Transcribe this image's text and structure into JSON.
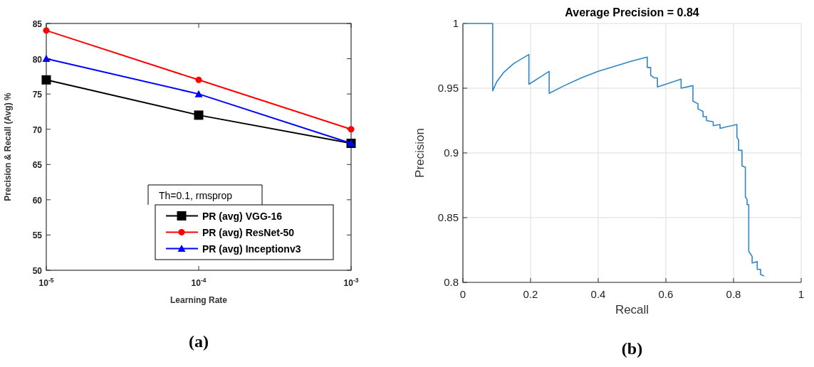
{
  "chart_data": [
    {
      "type": "line",
      "xlabel": "Learning Rate",
      "ylabel": "Precision & Recall (Avg) %",
      "legend_title": "Th=0.1, rmsprop",
      "legend": "bottom right",
      "log": "x",
      "grid": false,
      "annotations": [
        "(a)"
      ],
      "x": [
        1e-05,
        0.0001,
        0.001
      ],
      "xlim": [
        1e-05,
        0.001
      ],
      "xticks": [
        {
          "value": 1e-05,
          "label": "10$^{-5}$"
        },
        {
          "value": 0.0001,
          "label": "10$^{-4}$"
        },
        {
          "value": 0.001,
          "label": "10$^{-3}$"
        }
      ],
      "ylim": [
        50,
        85
      ],
      "yticks": [
        50,
        55,
        60,
        65,
        70,
        75,
        80,
        85
      ],
      "series": [
        {
          "name": "PR (avg) VGG-16",
          "color": "#000000",
          "marker": "square",
          "values": [
            77,
            72,
            68
          ]
        },
        {
          "name": "PR (avg) ResNet-50",
          "color": "#ff0000",
          "marker": "circle",
          "values": [
            84,
            77,
            70
          ]
        },
        {
          "name": "PR (avg) Inceptionv3",
          "color": "#0000ff",
          "marker": "triangle",
          "values": [
            80,
            75,
            68
          ]
        }
      ]
    },
    {
      "type": "line",
      "title": "Average Precision = 0.84",
      "xlabel": "Recall",
      "ylabel": "Precision",
      "grid": true,
      "annotations": [
        "(b)"
      ],
      "marker": "none",
      "xlim": [
        0,
        1
      ],
      "xticks": [
        0,
        0.2,
        0.4,
        0.6,
        0.8,
        1
      ],
      "ylim": [
        0.8,
        1
      ],
      "yticks": [
        0.8,
        0.85,
        0.9,
        0.95,
        1
      ],
      "series": [
        {
          "color": "#2f86c6",
          "x": [
            0,
            0.088,
            0.088,
            0.1,
            0.12,
            0.15,
            0.195,
            0.195,
            0.255,
            0.255,
            0.3,
            0.35,
            0.4,
            0.45,
            0.5,
            0.545,
            0.545,
            0.555,
            0.555,
            0.565,
            0.575,
            0.575,
            0.645,
            0.645,
            0.68,
            0.68,
            0.695,
            0.695,
            0.71,
            0.71,
            0.72,
            0.72,
            0.74,
            0.74,
            0.76,
            0.76,
            0.81,
            0.81,
            0.815,
            0.815,
            0.825,
            0.825,
            0.835,
            0.835,
            0.84,
            0.84,
            0.845,
            0.845,
            0.85,
            0.855,
            0.855,
            0.87,
            0.87,
            0.88,
            0.88,
            0.89
          ],
          "values": [
            1,
            1,
            0.948,
            0.955,
            0.962,
            0.969,
            0.976,
            0.953,
            0.963,
            0.946,
            0.952,
            0.958,
            0.963,
            0.967,
            0.971,
            0.974,
            0.966,
            0.966,
            0.96,
            0.958,
            0.958,
            0.951,
            0.957,
            0.95,
            0.952,
            0.94,
            0.938,
            0.934,
            0.932,
            0.928,
            0.928,
            0.925,
            0.924,
            0.921,
            0.922,
            0.919,
            0.922,
            0.912,
            0.91,
            0.902,
            0.902,
            0.89,
            0.889,
            0.866,
            0.864,
            0.86,
            0.86,
            0.824,
            0.822,
            0.82,
            0.815,
            0.816,
            0.81,
            0.81,
            0.806,
            0.805
          ]
        }
      ]
    }
  ]
}
